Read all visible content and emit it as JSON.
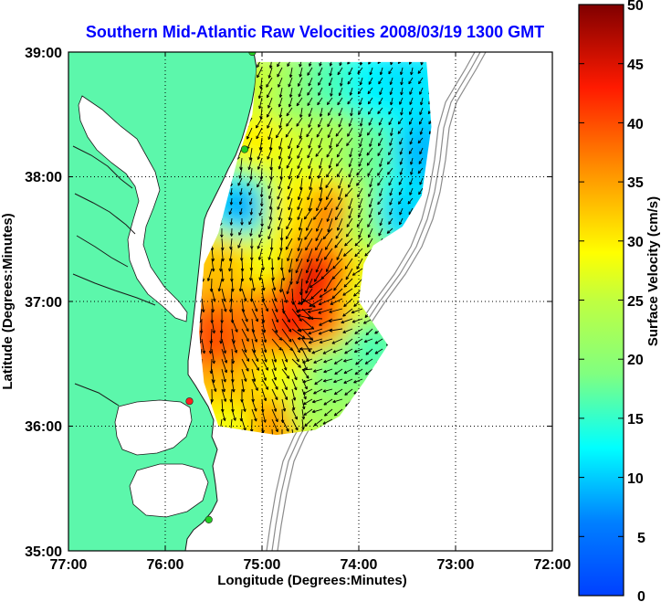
{
  "chart_data": {
    "type": "heatmap",
    "title": "Southern Mid-Atlantic Raw Velocities 2008/03/19 1300 GMT",
    "xlabel": "Longitude (Degrees:Minutes)",
    "ylabel": "Latitude (Degrees:Minutes)",
    "colorbar_label": "Surface Velocity (cm/s)",
    "x_ticks": [
      "77:00",
      "76:00",
      "75:00",
      "74:00",
      "73:00",
      "72:00"
    ],
    "x_tick_values": [
      -77,
      -76,
      -75,
      -74,
      -73,
      -72
    ],
    "y_ticks": [
      "39:00",
      "38:00",
      "37:00",
      "36:00",
      "35:00"
    ],
    "y_tick_values": [
      39,
      38,
      37,
      36,
      35
    ],
    "xlim": [
      -77,
      -72
    ],
    "ylim": [
      35,
      39
    ],
    "colorbar_ticks": [
      50,
      45,
      40,
      35,
      30,
      25,
      20,
      15,
      10,
      5,
      0
    ],
    "clim": [
      0,
      50
    ],
    "colormap": "jet",
    "grid": true,
    "colors": {
      "title": "#0000ff",
      "land": "#5cf7ab",
      "ocean": "#ffffff",
      "bathymetry": "#8c8c8c",
      "station_active": "#22cc22",
      "station_flagged": "#ff2020"
    },
    "coverage_polygon_lonlat": [
      [
        -75.05,
        38.92
      ],
      [
        -73.3,
        38.92
      ],
      [
        -73.25,
        38.4
      ],
      [
        -73.35,
        37.85
      ],
      [
        -73.55,
        37.6
      ],
      [
        -73.85,
        37.45
      ],
      [
        -73.95,
        37.3
      ],
      [
        -74.0,
        37.0
      ],
      [
        -73.7,
        36.65
      ],
      [
        -73.95,
        36.35
      ],
      [
        -74.2,
        36.08
      ],
      [
        -74.45,
        35.97
      ],
      [
        -74.85,
        35.93
      ],
      [
        -75.45,
        36.0
      ],
      [
        -75.6,
        36.35
      ],
      [
        -75.65,
        36.75
      ],
      [
        -75.6,
        37.3
      ],
      [
        -75.45,
        37.55
      ],
      [
        -75.35,
        37.85
      ],
      [
        -75.25,
        38.15
      ],
      [
        -75.1,
        38.5
      ],
      [
        -75.05,
        38.92
      ]
    ],
    "speed_samples": [
      {
        "lon": -73.6,
        "lat": 38.75,
        "v": 11
      },
      {
        "lon": -73.9,
        "lat": 38.7,
        "v": 12
      },
      {
        "lon": -74.3,
        "lat": 38.7,
        "v": 16
      },
      {
        "lon": -74.7,
        "lat": 38.65,
        "v": 20
      },
      {
        "lon": -75.0,
        "lat": 38.7,
        "v": 26
      },
      {
        "lon": -75.0,
        "lat": 38.3,
        "v": 30
      },
      {
        "lon": -74.7,
        "lat": 38.2,
        "v": 27
      },
      {
        "lon": -74.3,
        "lat": 38.3,
        "v": 24
      },
      {
        "lon": -73.9,
        "lat": 38.2,
        "v": 18
      },
      {
        "lon": -73.4,
        "lat": 38.2,
        "v": 9
      },
      {
        "lon": -73.6,
        "lat": 37.7,
        "v": 10
      },
      {
        "lon": -74.0,
        "lat": 37.65,
        "v": 22
      },
      {
        "lon": -74.3,
        "lat": 37.7,
        "v": 38
      },
      {
        "lon": -74.7,
        "lat": 37.75,
        "v": 30
      },
      {
        "lon": -75.2,
        "lat": 37.75,
        "v": 8
      },
      {
        "lon": -75.4,
        "lat": 37.3,
        "v": 33
      },
      {
        "lon": -74.9,
        "lat": 37.3,
        "v": 28
      },
      {
        "lon": -74.6,
        "lat": 37.2,
        "v": 46
      },
      {
        "lon": -74.3,
        "lat": 37.15,
        "v": 42
      },
      {
        "lon": -74.0,
        "lat": 37.1,
        "v": 27
      },
      {
        "lon": -74.4,
        "lat": 36.85,
        "v": 40
      },
      {
        "lon": -74.7,
        "lat": 36.8,
        "v": 44
      },
      {
        "lon": -75.1,
        "lat": 36.8,
        "v": 37
      },
      {
        "lon": -75.45,
        "lat": 36.7,
        "v": 40
      },
      {
        "lon": -73.9,
        "lat": 36.65,
        "v": 16
      },
      {
        "lon": -74.3,
        "lat": 36.45,
        "v": 18
      },
      {
        "lon": -74.8,
        "lat": 36.4,
        "v": 28
      },
      {
        "lon": -75.3,
        "lat": 36.3,
        "v": 33
      },
      {
        "lon": -74.5,
        "lat": 36.15,
        "v": 22
      },
      {
        "lon": -74.9,
        "lat": 36.05,
        "v": 36
      },
      {
        "lon": -75.3,
        "lat": 36.05,
        "v": 28
      }
    ],
    "stations_lonlat": [
      {
        "lon": -75.1,
        "lat": 39.0,
        "status": "active"
      },
      {
        "lon": -75.18,
        "lat": 38.22,
        "status": "active"
      },
      {
        "lon": -75.75,
        "lat": 36.2,
        "status": "flagged"
      },
      {
        "lon": -75.55,
        "lat": 35.25,
        "status": "active"
      }
    ]
  }
}
